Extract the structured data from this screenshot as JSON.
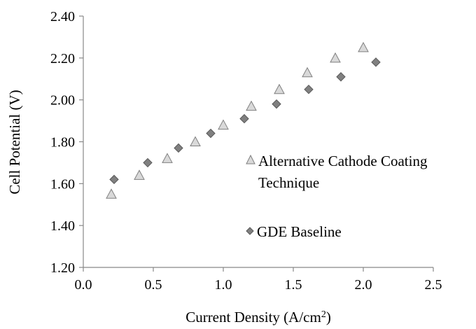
{
  "chart_data": {
    "type": "scatter",
    "title": "",
    "xlabel": "Current Density (A/cm",
    "xlabel_sup": "2",
    "xlabel_tail": ")",
    "ylabel": "Cell Potential (V)",
    "xlim": [
      0.0,
      2.5
    ],
    "ylim": [
      1.2,
      2.4
    ],
    "x_ticks": [
      0.0,
      0.5,
      1.0,
      1.5,
      2.0,
      2.5
    ],
    "x_tick_labels": [
      "0.0",
      "0.5",
      "1.0",
      "1.5",
      "2.0",
      "2.5"
    ],
    "y_ticks": [
      1.2,
      1.4,
      1.6,
      1.8,
      2.0,
      2.2,
      2.4
    ],
    "y_tick_labels": [
      "1.20",
      "1.40",
      "1.60",
      "1.80",
      "2.00",
      "2.20",
      "2.40"
    ],
    "grid": false,
    "legend_position": "right",
    "series": [
      {
        "name": "Alternative Cathode Coating",
        "name_line2": "Technique",
        "marker": "triangle",
        "color": "#d9d9d9",
        "x": [
          0.2,
          0.4,
          0.6,
          0.8,
          1.0,
          1.2,
          1.4,
          1.6,
          1.8,
          2.0
        ],
        "y": [
          1.55,
          1.64,
          1.72,
          1.8,
          1.88,
          1.97,
          2.05,
          2.13,
          2.2,
          2.25
        ]
      },
      {
        "name": "GDE Baseline",
        "marker": "diamond",
        "color": "#808080",
        "x": [
          0.22,
          0.46,
          0.68,
          0.91,
          1.15,
          1.38,
          1.61,
          1.84,
          2.09
        ],
        "y": [
          1.62,
          1.7,
          1.77,
          1.84,
          1.91,
          1.98,
          2.05,
          2.11,
          2.18
        ]
      }
    ]
  }
}
